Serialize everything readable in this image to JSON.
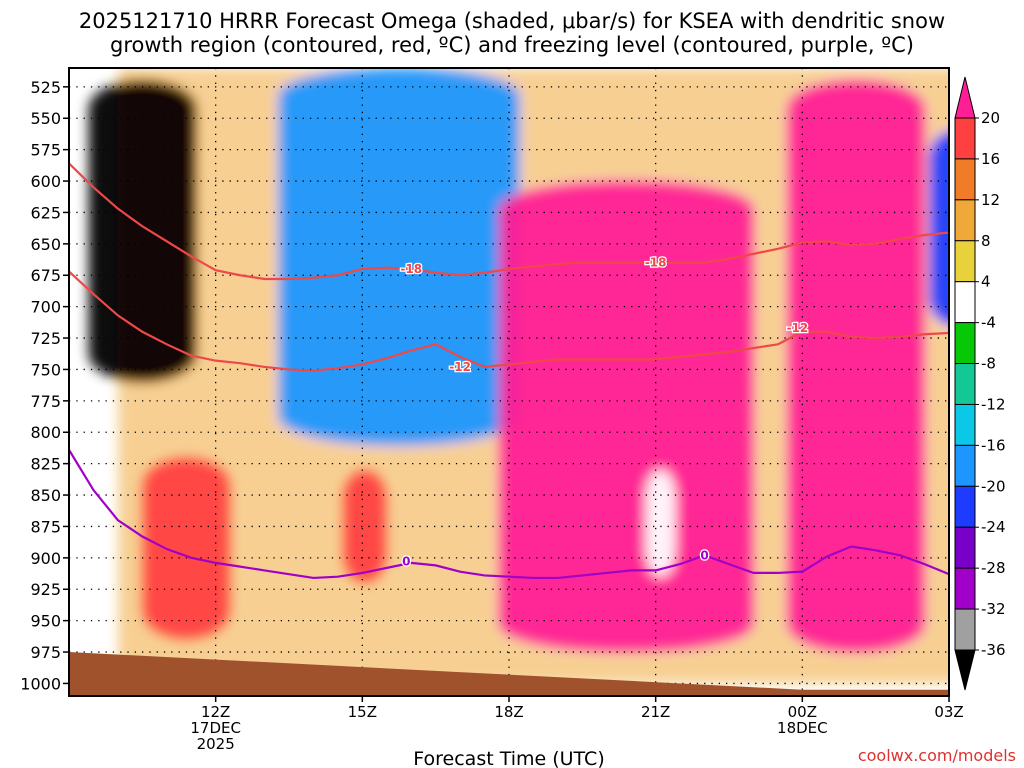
{
  "chart_data": {
    "type": "heatmap",
    "title_line1": "2025121710 HRRR Forecast Omega (shaded, μbar/s) for KSEA with dendritic snow",
    "title_line2": "growth region (contoured, red, ºC) and freezing level (contoured, purple, ºC)",
    "xlabel": "Forecast Time (UTC)",
    "credit": "coolwx.com/models",
    "y_axis": {
      "unit": "hPa",
      "range": [
        510,
        1010
      ],
      "ticks": [
        525,
        550,
        575,
        600,
        625,
        650,
        675,
        700,
        725,
        750,
        775,
        800,
        825,
        850,
        875,
        900,
        925,
        950,
        975,
        1000
      ]
    },
    "x_axis": {
      "unit": "forecast hour (UTC)",
      "range": [
        9.0,
        27.0
      ],
      "ticks": [
        {
          "value": 12,
          "label": "12Z",
          "sub1": "17DEC",
          "sub2": "2025"
        },
        {
          "value": 15,
          "label": "15Z",
          "sub1": "",
          "sub2": ""
        },
        {
          "value": 18,
          "label": "18Z",
          "sub1": "",
          "sub2": ""
        },
        {
          "value": 21,
          "label": "21Z",
          "sub1": "",
          "sub2": ""
        },
        {
          "value": 24,
          "label": "00Z",
          "sub1": "18DEC",
          "sub2": ""
        },
        {
          "value": 27,
          "label": "03Z",
          "sub1": "",
          "sub2": ""
        }
      ]
    },
    "colorbar": {
      "labels": [
        "20",
        "16",
        "12",
        "8",
        "4",
        "-4",
        "-8",
        "-12",
        "-16",
        "-20",
        "-24",
        "-28",
        "-32",
        "-36"
      ],
      "colors": [
        "#ff1e96",
        "#ff4040",
        "#f07c28",
        "#f0a838",
        "#e8d23c",
        "#ffffff",
        "#06c806",
        "#14c896",
        "#0ac8e6",
        "#1e96ff",
        "#1e3cff",
        "#7800c8",
        "#a000c8",
        "#a0a0a0",
        "#000000"
      ]
    },
    "omega_field": [
      {
        "name": "broad-positive-region",
        "x": [
          10.0,
          28.0
        ],
        "p": [
          510,
          1000
        ],
        "value": 8
      },
      {
        "name": "strong-rise-morning",
        "x": [
          9.4,
          11.6
        ],
        "p": [
          520,
          760
        ],
        "value": -36
      },
      {
        "name": "rise-midmorning",
        "x": [
          13.3,
          18.2
        ],
        "p": [
          510,
          810
        ],
        "value": -16
      },
      {
        "name": "sink-lowlevel-morning",
        "x": [
          10.5,
          12.3
        ],
        "p": [
          820,
          965
        ],
        "value": 16
      },
      {
        "name": "sink-lowlevel-15z",
        "x": [
          14.6,
          15.5
        ],
        "p": [
          830,
          920
        ],
        "value": 16
      },
      {
        "name": "strong-sink-afternoon",
        "x": [
          17.8,
          23.0
        ],
        "p": [
          600,
          975
        ],
        "value": 20
      },
      {
        "name": "strong-sink-evening",
        "x": [
          23.7,
          26.5
        ],
        "p": [
          520,
          975
        ],
        "value": 20
      },
      {
        "name": "weak-pocket-21z",
        "x": [
          20.8,
          21.4
        ],
        "p": [
          830,
          915
        ],
        "value": 0
      },
      {
        "name": "rise-pocket-03z",
        "x": [
          26.6,
          27.7
        ],
        "p": [
          560,
          715
        ],
        "value": -20
      }
    ],
    "series": [
      {
        "name": "-18",
        "label": "-18",
        "color": "#ef4848",
        "x": [
          9.0,
          9.5,
          10.0,
          10.5,
          11.0,
          11.5,
          12.0,
          12.5,
          13.0,
          13.5,
          14.0,
          14.5,
          15.0,
          15.5,
          16.0,
          16.5,
          17.0,
          17.5,
          18.0,
          18.5,
          19.0,
          19.5,
          20.0,
          20.5,
          21.0,
          21.5,
          22.0,
          22.5,
          23.0,
          23.5,
          24.0,
          24.5,
          25.0,
          25.5,
          26.0,
          26.5,
          27.0,
          27.5,
          28.0
        ],
        "p": [
          586,
          605,
          622,
          636,
          648,
          660,
          671,
          675,
          678,
          678,
          677,
          675,
          670,
          669,
          670,
          673,
          675,
          673,
          670,
          668,
          666,
          665,
          665,
          665,
          665,
          665,
          665,
          662,
          658,
          654,
          649,
          648,
          651,
          650,
          646,
          643,
          641,
          642,
          644
        ]
      },
      {
        "name": "-12",
        "label": "-12",
        "color": "#ef4848",
        "x": [
          9.0,
          9.5,
          10.0,
          10.5,
          11.0,
          11.5,
          12.0,
          12.5,
          13.0,
          13.5,
          14.0,
          14.5,
          15.0,
          15.5,
          16.0,
          16.5,
          17.0,
          17.5,
          18.0,
          18.5,
          19.0,
          19.5,
          20.0,
          20.5,
          21.0,
          21.5,
          22.0,
          22.5,
          23.0,
          23.5,
          24.0,
          24.5,
          25.0,
          25.5,
          26.0,
          26.5,
          27.0,
          27.5,
          28.0
        ],
        "p": [
          672,
          690,
          707,
          720,
          730,
          739,
          743,
          745,
          748,
          750,
          751,
          749,
          746,
          741,
          735,
          730,
          740,
          748,
          746,
          744,
          742,
          742,
          742,
          742,
          742,
          740,
          738,
          736,
          733,
          730,
          720,
          720,
          724,
          725,
          724,
          722,
          721,
          720,
          720
        ]
      },
      {
        "name": "0",
        "label": "0",
        "color": "#a000c8",
        "x": [
          9.0,
          9.5,
          10.0,
          10.5,
          11.0,
          11.5,
          12.0,
          12.5,
          13.0,
          13.5,
          14.0,
          14.5,
          15.0,
          15.5,
          16.0,
          16.5,
          17.0,
          17.5,
          18.0,
          18.5,
          19.0,
          19.5,
          20.0,
          20.5,
          21.0,
          21.5,
          22.0,
          22.5,
          23.0,
          23.5,
          24.0,
          24.5,
          25.0,
          25.5,
          26.0,
          26.5,
          27.0,
          27.5,
          28.0
        ],
        "p": [
          814,
          846,
          870,
          883,
          893,
          900,
          904,
          907,
          910,
          913,
          916,
          915,
          912,
          908,
          904,
          906,
          911,
          914,
          915,
          916,
          916,
          914,
          912,
          910,
          910,
          905,
          898,
          905,
          912,
          912,
          911,
          899,
          891,
          894,
          898,
          905,
          913,
          911,
          906
        ]
      }
    ],
    "contour_labels": [
      {
        "series": "-18",
        "text": "-18",
        "x": 16.0,
        "p": 670
      },
      {
        "series": "-18",
        "text": "-18",
        "x": 21.0,
        "p": 665
      },
      {
        "series": "-12",
        "text": "-12",
        "x": 17.0,
        "p": 748
      },
      {
        "series": "-12",
        "text": "-12",
        "x": 23.9,
        "p": 717
      },
      {
        "series": "0",
        "text": "0",
        "x": 15.9,
        "p": 903
      },
      {
        "series": "0",
        "text": "0",
        "x": 22.0,
        "p": 898
      }
    ],
    "terrain": {
      "name": "ground",
      "x": [
        9.0,
        24.0
      ],
      "p_top": [
        975,
        1005
      ],
      "color": "#a0522d"
    }
  }
}
